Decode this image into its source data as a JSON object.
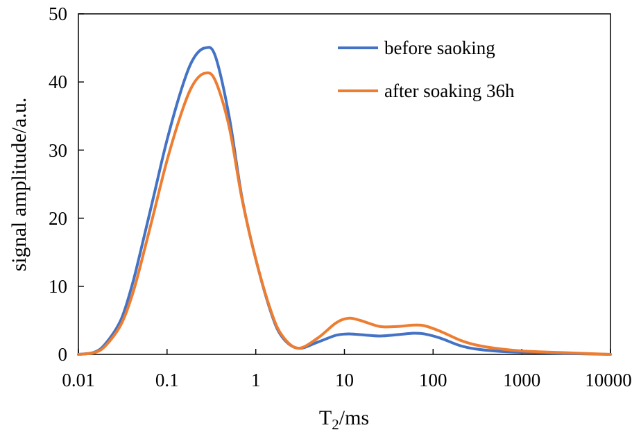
{
  "chart_data": {
    "type": "line",
    "title": "",
    "xscale": "log",
    "xlim": [
      0.01,
      10000
    ],
    "ylim": [
      0,
      50
    ],
    "xticks": [
      "0.01",
      "0.1",
      "1",
      "10",
      "100",
      "1000",
      "10000"
    ],
    "yticks": [
      "0",
      "10",
      "20",
      "30",
      "40",
      "50"
    ],
    "xlabel": {
      "main": "T",
      "sub": "2",
      "rest": "/ms"
    },
    "ylabel": "signal amplitude/a.u.",
    "legend_position": "top-right",
    "grid": false,
    "series": [
      {
        "name": "before saoking",
        "color": "#4472C4",
        "points": [
          [
            0.01,
            0
          ],
          [
            0.015,
            0.3
          ],
          [
            0.02,
            1.5
          ],
          [
            0.03,
            5
          ],
          [
            0.04,
            10
          ],
          [
            0.05,
            15
          ],
          [
            0.07,
            23
          ],
          [
            0.1,
            31.5
          ],
          [
            0.15,
            39.5
          ],
          [
            0.2,
            43.5
          ],
          [
            0.27,
            45
          ],
          [
            0.35,
            43.8
          ],
          [
            0.5,
            35
          ],
          [
            0.7,
            23
          ],
          [
            1,
            14
          ],
          [
            1.5,
            6
          ],
          [
            2,
            2.5
          ],
          [
            3,
            0.9
          ],
          [
            5,
            1.8
          ],
          [
            8,
            2.8
          ],
          [
            11,
            3.0
          ],
          [
            15,
            2.9
          ],
          [
            25,
            2.7
          ],
          [
            40,
            2.9
          ],
          [
            60,
            3.1
          ],
          [
            80,
            3.0
          ],
          [
            120,
            2.4
          ],
          [
            200,
            1.3
          ],
          [
            300,
            0.8
          ],
          [
            500,
            0.5
          ],
          [
            1000,
            0.3
          ],
          [
            3000,
            0.15
          ],
          [
            10000,
            0
          ]
        ]
      },
      {
        "name": "after soaking 36h",
        "color": "#ED7D31",
        "points": [
          [
            0.01,
            0
          ],
          [
            0.015,
            0.25
          ],
          [
            0.02,
            1.2
          ],
          [
            0.03,
            4.3
          ],
          [
            0.04,
            8.5
          ],
          [
            0.05,
            13
          ],
          [
            0.07,
            20.5
          ],
          [
            0.1,
            28.5
          ],
          [
            0.15,
            36
          ],
          [
            0.2,
            39.8
          ],
          [
            0.27,
            41.3
          ],
          [
            0.35,
            40.2
          ],
          [
            0.5,
            33.5
          ],
          [
            0.7,
            22.8
          ],
          [
            1,
            14
          ],
          [
            1.5,
            6.2
          ],
          [
            2,
            2.7
          ],
          [
            3,
            0.9
          ],
          [
            5,
            2.4
          ],
          [
            8,
            4.6
          ],
          [
            11,
            5.3
          ],
          [
            15,
            5.0
          ],
          [
            25,
            4.1
          ],
          [
            40,
            4.1
          ],
          [
            60,
            4.3
          ],
          [
            80,
            4.2
          ],
          [
            120,
            3.4
          ],
          [
            200,
            2.1
          ],
          [
            300,
            1.4
          ],
          [
            500,
            0.9
          ],
          [
            1000,
            0.5
          ],
          [
            3000,
            0.25
          ],
          [
            10000,
            0
          ]
        ]
      }
    ]
  }
}
